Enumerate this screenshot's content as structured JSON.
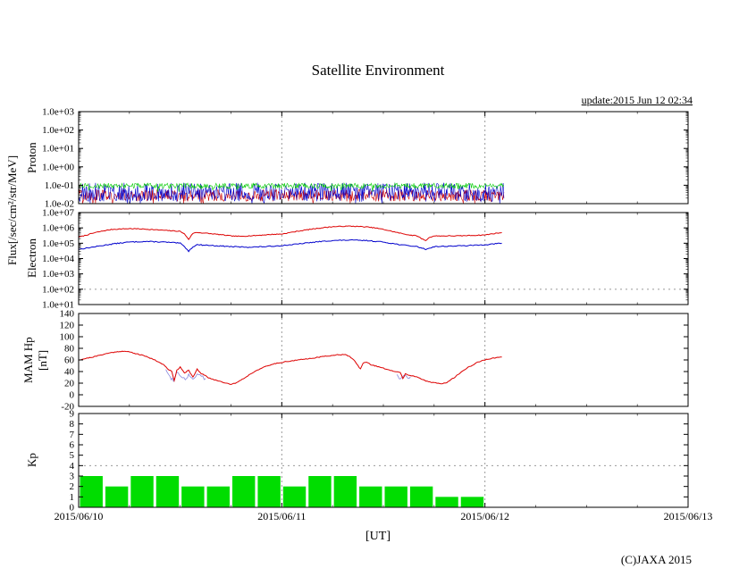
{
  "title": "Satellite Environment",
  "update_text": "update:2015 Jun 12 02:34",
  "copyright": "(C)JAXA 2015",
  "flux_axis_label": "Flux[/sec/cm²/str/MeV]",
  "xaxis": {
    "label": "[UT]",
    "ticks": [
      {
        "hour": 0,
        "label": "2015/06/10"
      },
      {
        "hour": 24,
        "label": "2015/06/11"
      },
      {
        "hour": 48,
        "label": "2015/06/12"
      },
      {
        "hour": 72,
        "label": "2015/06/13"
      }
    ]
  },
  "chart_data": [
    {
      "id": "proton-flux",
      "type": "line",
      "scale": "log",
      "ylabel": "Proton",
      "ylim": [
        0.01,
        1000
      ],
      "yticks": [
        {
          "v": 1000,
          "label": "1.0e+03"
        },
        {
          "v": 100,
          "label": "1.0e+02"
        },
        {
          "v": 10,
          "label": "1.0e+01"
        },
        {
          "v": 1,
          "label": "1.0e+00"
        },
        {
          "v": 0.1,
          "label": "1.0e-01"
        },
        {
          "v": 0.01,
          "label": "1.0e-02"
        }
      ],
      "data_end_hour": 50.3,
      "series": [
        {
          "name": "proton-series-red",
          "color": "#cc0000",
          "noise": true,
          "log_center": -1.55,
          "log_spread": 0.33,
          "seed": 101,
          "width": 0.6
        },
        {
          "name": "proton-series-blue",
          "color": "#0000cc",
          "noise": true,
          "log_center": -1.38,
          "log_spread": 0.52,
          "seed": 202,
          "width": 0.6
        },
        {
          "name": "proton-series-green",
          "color": "#00cc00",
          "noise": true,
          "log_center": -1.03,
          "log_spread": 0.14,
          "seed": 303,
          "width": 0.6
        }
      ]
    },
    {
      "id": "electron-flux",
      "type": "line",
      "scale": "log",
      "ylabel": "Electron",
      "ylim": [
        10,
        10000000.0
      ],
      "yticks": [
        {
          "v": 10000000.0,
          "label": "1.0e+07"
        },
        {
          "v": 1000000.0,
          "label": "1.0e+06"
        },
        {
          "v": 100000.0,
          "label": "1.0e+05"
        },
        {
          "v": 10000.0,
          "label": "1.0e+04"
        },
        {
          "v": 1000,
          "label": "1.0e+03"
        },
        {
          "v": 100,
          "label": "1.0e+02"
        },
        {
          "v": 10,
          "label": "1.0e+01"
        }
      ],
      "hlines": [
        100
      ],
      "data_end_hour": 50,
      "series": [
        {
          "name": "electron-series-red",
          "color": "#dd0000",
          "jitter": 0.05,
          "seed": 7,
          "width": 1,
          "points": [
            [
              0,
              250000
            ],
            [
              1,
              350000
            ],
            [
              2,
              500000
            ],
            [
              3,
              650000
            ],
            [
              4,
              800000
            ],
            [
              5,
              850000
            ],
            [
              6,
              900000
            ],
            [
              7,
              870000
            ],
            [
              8,
              820000
            ],
            [
              9,
              760000
            ],
            [
              10,
              700000
            ],
            [
              11,
              650000
            ],
            [
              12,
              600000
            ],
            [
              12.5,
              400000
            ],
            [
              13,
              180000
            ],
            [
              13.5,
              450000
            ],
            [
              14,
              500000
            ],
            [
              15,
              450000
            ],
            [
              16,
              400000
            ],
            [
              17,
              350000
            ],
            [
              18,
              300000
            ],
            [
              19,
              280000
            ],
            [
              20,
              300000
            ],
            [
              21,
              320000
            ],
            [
              22,
              350000
            ],
            [
              23,
              380000
            ],
            [
              24,
              400000
            ],
            [
              25,
              500000
            ],
            [
              26,
              620000
            ],
            [
              27,
              760000
            ],
            [
              28,
              900000
            ],
            [
              29,
              1050000
            ],
            [
              30,
              1200000
            ],
            [
              31,
              1250000
            ],
            [
              32,
              1300000
            ],
            [
              33,
              1250000
            ],
            [
              34,
              1150000
            ],
            [
              35,
              1000000
            ],
            [
              36,
              800000
            ],
            [
              37,
              600000
            ],
            [
              38,
              450000
            ],
            [
              39,
              350000
            ],
            [
              40,
              300000
            ],
            [
              40.5,
              200000
            ],
            [
              41,
              150000
            ],
            [
              41.5,
              250000
            ],
            [
              42,
              300000
            ],
            [
              43,
              300000
            ],
            [
              44,
              300000
            ],
            [
              45,
              300000
            ],
            [
              46,
              320000
            ],
            [
              47,
              330000
            ],
            [
              48,
              350000
            ],
            [
              49,
              420000
            ],
            [
              50,
              500000
            ]
          ]
        },
        {
          "name": "electron-series-blue",
          "color": "#0000cc",
          "jitter": 0.06,
          "seed": 13,
          "width": 1,
          "points": [
            [
              0,
              40000
            ],
            [
              2,
              60000
            ],
            [
              4,
              90000
            ],
            [
              6,
              120000
            ],
            [
              8,
              130000
            ],
            [
              10,
              120000
            ],
            [
              12,
              100000
            ],
            [
              12.5,
              60000
            ],
            [
              13,
              30000
            ],
            [
              13.5,
              60000
            ],
            [
              14,
              80000
            ],
            [
              16,
              70000
            ],
            [
              18,
              60000
            ],
            [
              20,
              55000
            ],
            [
              22,
              60000
            ],
            [
              24,
              70000
            ],
            [
              26,
              90000
            ],
            [
              28,
              120000
            ],
            [
              30,
              150000
            ],
            [
              32,
              160000
            ],
            [
              34,
              150000
            ],
            [
              36,
              120000
            ],
            [
              38,
              80000
            ],
            [
              40,
              60000
            ],
            [
              41,
              40000
            ],
            [
              42,
              60000
            ],
            [
              44,
              65000
            ],
            [
              46,
              70000
            ],
            [
              48,
              80000
            ],
            [
              50,
              100000
            ]
          ]
        }
      ]
    },
    {
      "id": "mam-hp",
      "type": "line",
      "scale": "linear",
      "ylabel": "MAM Hp",
      "ylabel_unit": "[nT]",
      "ylim": [
        -20,
        140
      ],
      "yticks": [
        {
          "v": 140,
          "label": "140"
        },
        {
          "v": 120,
          "label": "120"
        },
        {
          "v": 100,
          "label": "100"
        },
        {
          "v": 80,
          "label": "80"
        },
        {
          "v": 60,
          "label": "60"
        },
        {
          "v": 40,
          "label": "40"
        },
        {
          "v": 20,
          "label": "20"
        },
        {
          "v": 0,
          "label": "0"
        },
        {
          "v": -20,
          "label": "-20"
        }
      ],
      "data_end_hour": 50,
      "series": [
        {
          "name": "mam-hp-blue-burst-1",
          "color": "#8888dd",
          "jitter": 6,
          "seed": 55,
          "width": 0.8,
          "points": [
            [
              10.3,
              45
            ],
            [
              10.8,
              30
            ],
            [
              11.2,
              26
            ],
            [
              11.6,
              38
            ],
            [
              12.1,
              32
            ],
            [
              12.6,
              28
            ],
            [
              13,
              34
            ],
            [
              13.5,
              27
            ],
            [
              14,
              36
            ],
            [
              14.5,
              30
            ],
            [
              15,
              28
            ]
          ]
        },
        {
          "name": "mam-hp-blue-burst-2",
          "color": "#8888dd",
          "jitter": 5,
          "seed": 56,
          "width": 0.8,
          "points": [
            [
              37.6,
              36
            ],
            [
              38,
              26
            ],
            [
              38.4,
              33
            ],
            [
              38.8,
              29
            ],
            [
              39.2,
              31
            ]
          ]
        },
        {
          "name": "mam-hp-line",
          "color": "#dd0000",
          "jitter": 1.5,
          "seed": 21,
          "width": 1,
          "points": [
            [
              0,
              60
            ],
            [
              1,
              63
            ],
            [
              2,
              66
            ],
            [
              3,
              70
            ],
            [
              4,
              73
            ],
            [
              5,
              75
            ],
            [
              6,
              74
            ],
            [
              7,
              70
            ],
            [
              8,
              66
            ],
            [
              9,
              60
            ],
            [
              10,
              52
            ],
            [
              10.5,
              45
            ],
            [
              11,
              40
            ],
            [
              11.3,
              25
            ],
            [
              11.6,
              42
            ],
            [
              12,
              48
            ],
            [
              12.5,
              38
            ],
            [
              13,
              42
            ],
            [
              13.5,
              30
            ],
            [
              14,
              44
            ],
            [
              14.5,
              36
            ],
            [
              15,
              33
            ],
            [
              15.5,
              28
            ],
            [
              16,
              26
            ],
            [
              16.5,
              24
            ],
            [
              17,
              22
            ],
            [
              17.5,
              20
            ],
            [
              18,
              18
            ],
            [
              18.5,
              20
            ],
            [
              19,
              24
            ],
            [
              19.5,
              28
            ],
            [
              20,
              33
            ],
            [
              21,
              42
            ],
            [
              22,
              48
            ],
            [
              23,
              53
            ],
            [
              24,
              56
            ],
            [
              25,
              58
            ],
            [
              26,
              60
            ],
            [
              27,
              62
            ],
            [
              28,
              64
            ],
            [
              29,
              66
            ],
            [
              30,
              68
            ],
            [
              31,
              69
            ],
            [
              31.5,
              70
            ],
            [
              32,
              66
            ],
            [
              32.5,
              60
            ],
            [
              33,
              50
            ],
            [
              33.3,
              44
            ],
            [
              33.6,
              55
            ],
            [
              34,
              56
            ],
            [
              34.5,
              52
            ],
            [
              35,
              50
            ],
            [
              36,
              46
            ],
            [
              36.5,
              43
            ],
            [
              37,
              41
            ],
            [
              37.5,
              40
            ],
            [
              38,
              38
            ],
            [
              38.3,
              28
            ],
            [
              38.6,
              36
            ],
            [
              39,
              34
            ],
            [
              40,
              30
            ],
            [
              40.5,
              27
            ],
            [
              41,
              24
            ],
            [
              41.5,
              22
            ],
            [
              42,
              21
            ],
            [
              42.5,
              20
            ],
            [
              43,
              19
            ],
            [
              43.5,
              21
            ],
            [
              44,
              26
            ],
            [
              44.5,
              31
            ],
            [
              45,
              37
            ],
            [
              45.5,
              42
            ],
            [
              46,
              47
            ],
            [
              46.5,
              51
            ],
            [
              47,
              55
            ],
            [
              47.5,
              58
            ],
            [
              48,
              60
            ],
            [
              48.5,
              62
            ],
            [
              49,
              63
            ],
            [
              49.5,
              64
            ],
            [
              50,
              65
            ]
          ]
        }
      ]
    },
    {
      "id": "kp-index",
      "type": "bar",
      "scale": "linear",
      "ylabel": "Kp",
      "ylim": [
        0,
        9
      ],
      "yticks": [
        {
          "v": 9,
          "label": "9"
        },
        {
          "v": 8,
          "label": "8"
        },
        {
          "v": 7,
          "label": "7"
        },
        {
          "v": 6,
          "label": "6"
        },
        {
          "v": 5,
          "label": "5"
        },
        {
          "v": 4,
          "label": "4"
        },
        {
          "v": 3,
          "label": "3"
        },
        {
          "v": 2,
          "label": "2"
        },
        {
          "v": 1,
          "label": "1"
        },
        {
          "v": 0,
          "label": "0"
        }
      ],
      "hlines": [
        4
      ],
      "bar_hours": 3,
      "bar_color": "#00dd00",
      "values": [
        3,
        2,
        3,
        3,
        2,
        2,
        3,
        3,
        2,
        3,
        3,
        2,
        2,
        2,
        1,
        1
      ]
    }
  ]
}
